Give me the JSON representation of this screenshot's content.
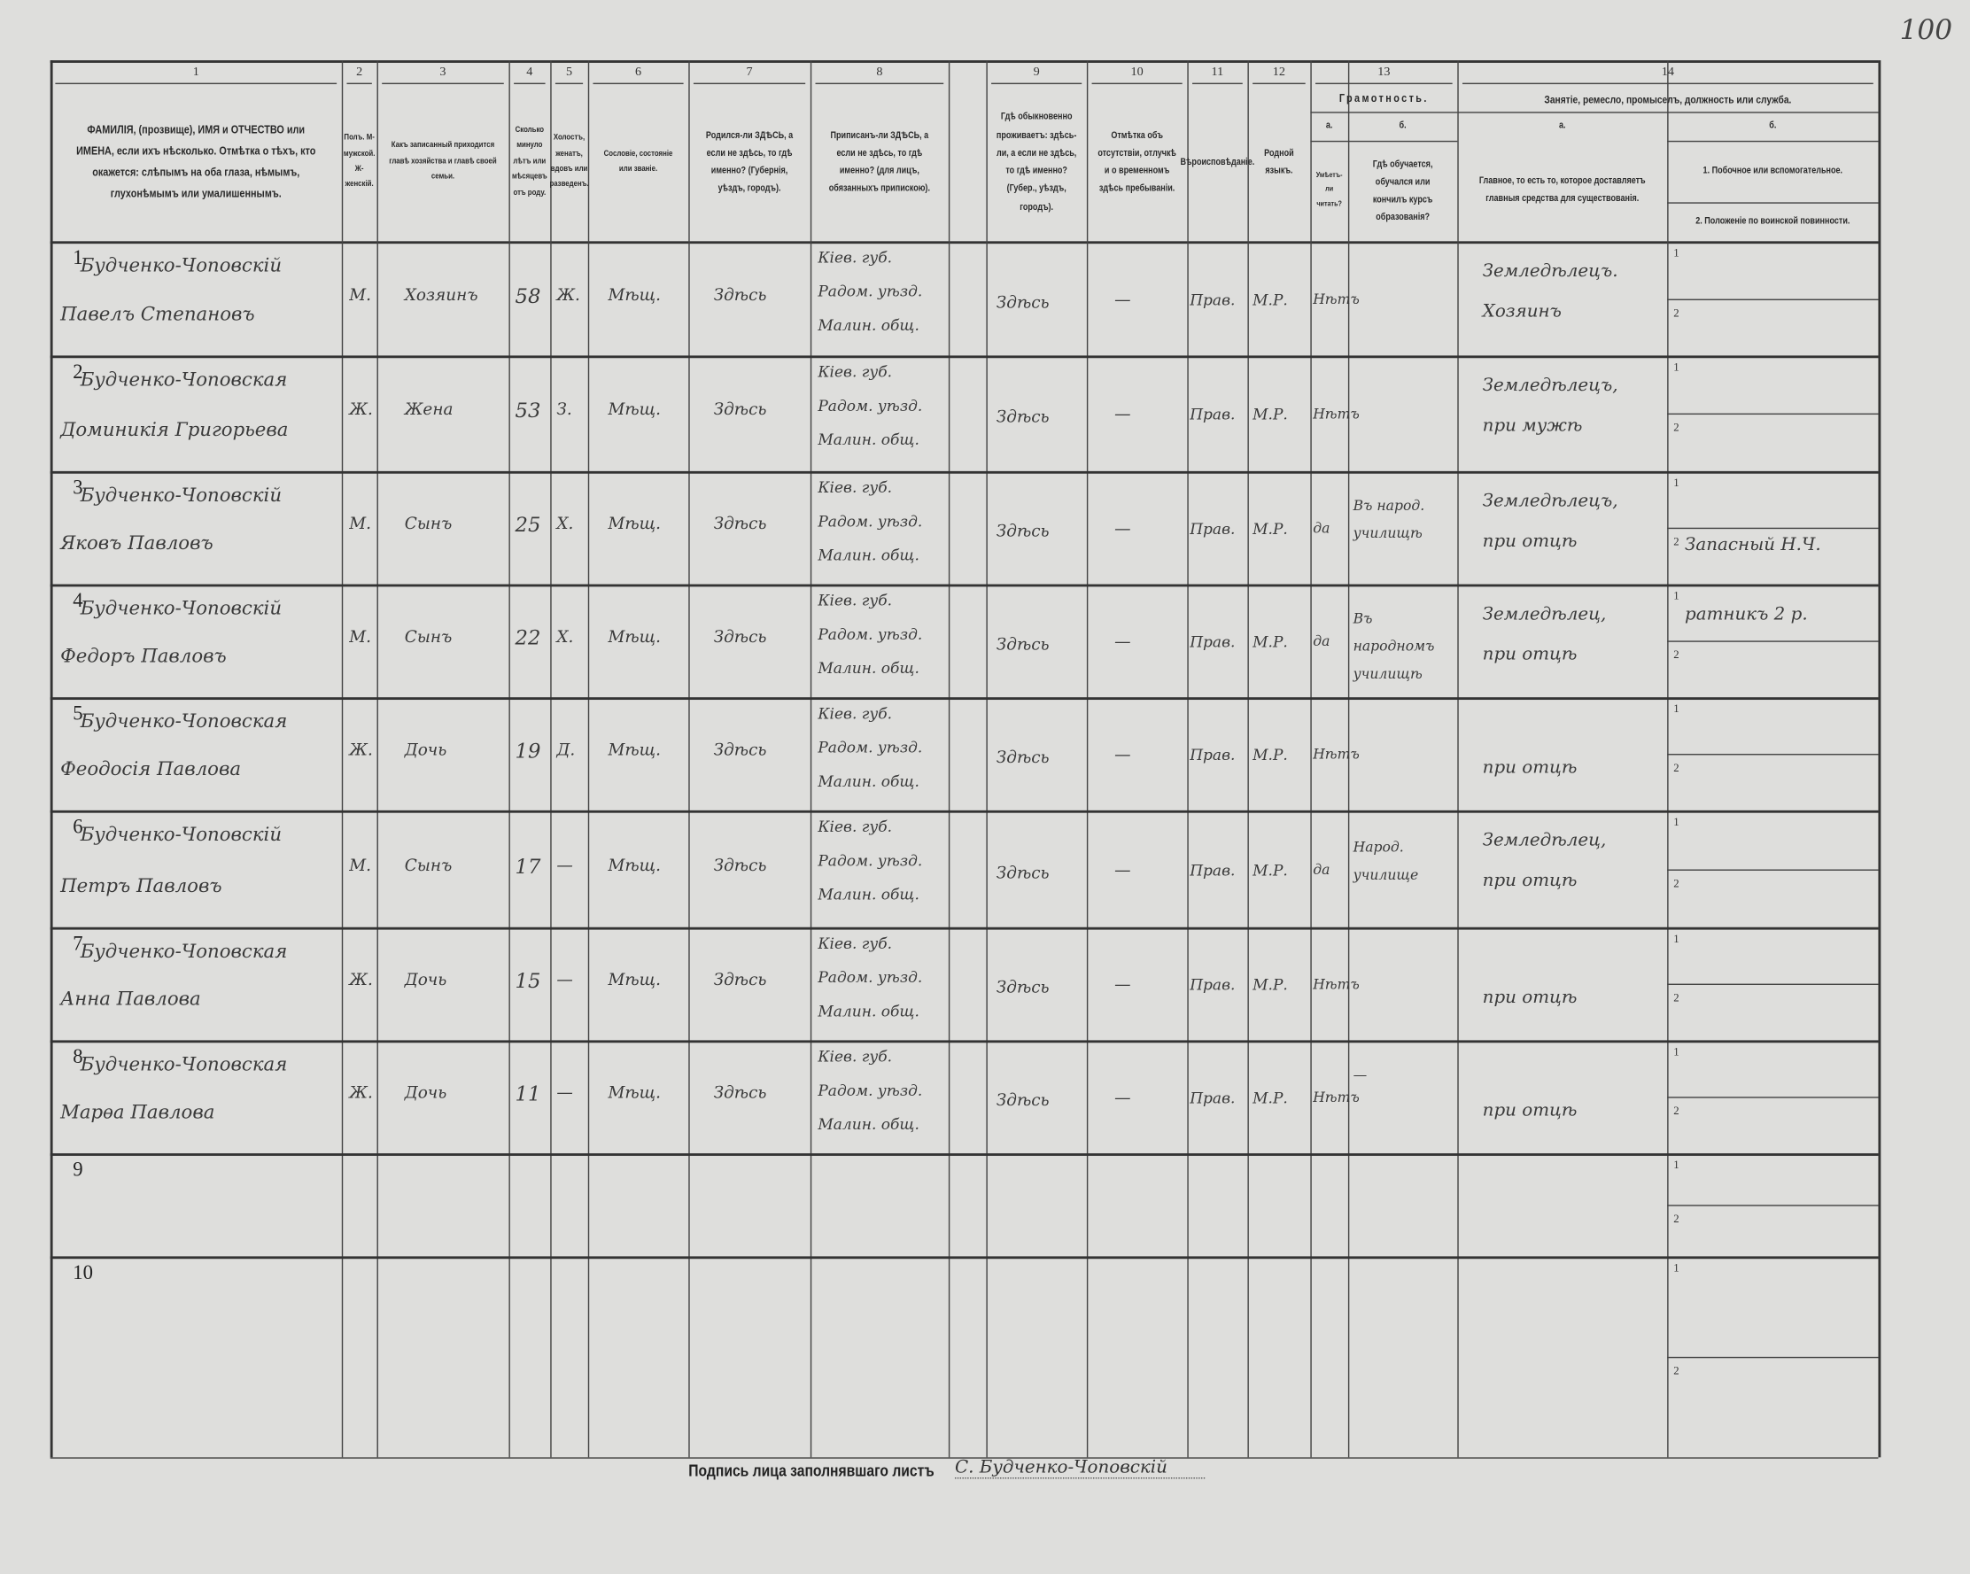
{
  "page_number": "100",
  "header": {
    "column_numbers": [
      "1",
      "2",
      "3",
      "4",
      "5",
      "6",
      "7",
      "8",
      "",
      "9",
      "10",
      "11",
      "12",
      "13",
      "14"
    ],
    "col1": "ФАМИЛІЯ, (прозвище), ИМЯ и ОТЧЕСТВО или ИМЕНА, если ихъ нѣсколько. Отмѣтка о тѣхъ, кто окажется: слѣпымъ на оба глаза, нѣмымъ, глухонѣмымъ или умалишеннымъ.",
    "col2": "Полъ. М-мужской. Ж-женскій.",
    "col3": "Какъ записанный приходится главѣ хозяйства и главѣ своей семьи.",
    "col4": "Сколько минуло лѣтъ или мѣсяцевъ отъ роду.",
    "col5": "Холостъ, женатъ, вдовъ или разведенъ.",
    "col6": "Сословіе, состояніе или званіе.",
    "col7": "Родился-ли ЗДѢСЬ, а если не здѣсь, то гдѣ именно? (Губернія, уѣздъ, городъ).",
    "col8": "Приписанъ-ли ЗДѢСЬ, а если не здѣсь, то гдѣ именно? (для лицъ, обязанныхъ припискою).",
    "col9": "Гдѣ обыкновенно проживаетъ: здѣсь-ли, а если не здѣсь, то гдѣ именно? (Губер., уѣздъ, городъ).",
    "col10": "Отмѣтка объ отсутствіи, отлучкѣ и о временномъ здѣсь пребываніи.",
    "col11": "Вѣроисповѣданіе.",
    "col12": "Родной языкъ.",
    "col13_title": "Грамотность.",
    "col13a_label": "а.",
    "col13b_label": "б.",
    "col13a": "Умѣетъ-ли читать?",
    "col13b": "Гдѣ обучается, обучался или кончилъ курсъ образованія?",
    "col14_title": "Занятіе, ремесло, промыселъ, должность или служба.",
    "col14a_label": "а.",
    "col14b_label": "б.",
    "col14a": "Главное, то есть то, которое доставляетъ главныя средства для существованія.",
    "col14b1": "1. Побочное или вспомогательное.",
    "col14b2": "2. Положеніе по воинской повинности."
  },
  "rows": [
    {
      "n": "1",
      "surname": "Будченко-Чоповскій",
      "name": "Павелъ Степановъ",
      "sex": "М.",
      "relation": "Хозяинъ",
      "age": "58",
      "marital": "Ж.",
      "estate": "Мѣщ.",
      "born": "Здѣсь",
      "registered": [
        "Кіев. губ.",
        "Радом. уѣзд.",
        "Малин. общ."
      ],
      "resides": "Здѣсь",
      "absence": "—",
      "religion": "Прав.",
      "language": "М.Р.",
      "literate": "Нѣтъ",
      "school": "",
      "occupation": [
        "Земледѣлецъ.",
        "Хозяинъ"
      ],
      "side1": "",
      "side2": ""
    },
    {
      "n": "2",
      "surname": "Будченко-Чоповская",
      "name": "Доминикія Григорьева",
      "sex": "Ж.",
      "relation": "Жена",
      "age": "53",
      "marital": "З.",
      "estate": "Мѣщ.",
      "born": "Здѣсь",
      "registered": [
        "Кіев. губ.",
        "Радом. уѣзд.",
        "Малин. общ."
      ],
      "resides": "Здѣсь",
      "absence": "—",
      "religion": "Прав.",
      "language": "М.Р.",
      "literate": "Нѣтъ",
      "school": "",
      "occupation": [
        "Земледѣлецъ,",
        "при мужѣ"
      ],
      "side1": "",
      "side2": ""
    },
    {
      "n": "3",
      "surname": "Будченко-Чоповскій",
      "name": "Яковъ Павловъ",
      "sex": "М.",
      "relation": "Сынъ",
      "age": "25",
      "marital": "Х.",
      "estate": "Мѣщ.",
      "born": "Здѣсь",
      "registered": [
        "Кіев. губ.",
        "Радом. уѣзд.",
        "Малин. общ."
      ],
      "resides": "Здѣсь",
      "absence": "—",
      "religion": "Прав.",
      "language": "М.Р.",
      "literate": "да",
      "school": "Въ народ. училищѣ",
      "occupation": [
        "Земледѣлецъ,",
        "при отцѣ"
      ],
      "side1": "",
      "side2": "Запасный Н.Ч."
    },
    {
      "n": "4",
      "surname": "Будченко-Чоповскій",
      "name": "Федоръ Павловъ",
      "sex": "М.",
      "relation": "Сынъ",
      "age": "22",
      "marital": "Х.",
      "estate": "Мѣщ.",
      "born": "Здѣсь",
      "registered": [
        "Кіев. губ.",
        "Радом. уѣзд.",
        "Малин. общ."
      ],
      "resides": "Здѣсь",
      "absence": "—",
      "religion": "Прав.",
      "language": "М.Р.",
      "literate": "да",
      "school": "Въ народномъ училищѣ",
      "occupation": [
        "Земледѣлец,",
        "при отцѣ"
      ],
      "side1": "ратникъ 2 р.",
      "side2": ""
    },
    {
      "n": "5",
      "surname": "Будченко-Чоповская",
      "name": "Феодосія Павлова",
      "sex": "Ж.",
      "relation": "Дочь",
      "age": "19",
      "marital": "Д.",
      "estate": "Мѣщ.",
      "born": "Здѣсь",
      "registered": [
        "Кіев. губ.",
        "Радом. уѣзд.",
        "Малин. общ."
      ],
      "resides": "Здѣсь",
      "absence": "—",
      "religion": "Прав.",
      "language": "М.Р.",
      "literate": "Нѣтъ",
      "school": "",
      "occupation": [
        "",
        "при отцѣ"
      ],
      "side1": "",
      "side2": ""
    },
    {
      "n": "6",
      "surname": "Будченко-Чоповскій",
      "name": "Петръ Павловъ",
      "sex": "М.",
      "relation": "Сынъ",
      "age": "17",
      "marital": "—",
      "estate": "Мѣщ.",
      "born": "Здѣсь",
      "registered": [
        "Кіев. губ.",
        "Радом. уѣзд.",
        "Малин. общ."
      ],
      "resides": "Здѣсь",
      "absence": "—",
      "religion": "Прав.",
      "language": "М.Р.",
      "literate": "да",
      "school": "Народ. училище",
      "occupation": [
        "Земледѣлец,",
        "при отцѣ"
      ],
      "side1": "",
      "side2": ""
    },
    {
      "n": "7",
      "surname": "Будченко-Чоповская",
      "name": "Анна Павлова",
      "sex": "Ж.",
      "relation": "Дочь",
      "age": "15",
      "marital": "—",
      "estate": "Мѣщ.",
      "born": "Здѣсь",
      "registered": [
        "Кіев. губ.",
        "Радом. уѣзд.",
        "Малин. общ."
      ],
      "resides": "Здѣсь",
      "absence": "—",
      "religion": "Прав.",
      "language": "М.Р.",
      "literate": "Нѣтъ",
      "school": "",
      "occupation": [
        "",
        "при отцѣ"
      ],
      "side1": "",
      "side2": ""
    },
    {
      "n": "8",
      "surname": "Будченко-Чоповская",
      "name": "Марѳа Павлова",
      "sex": "Ж.",
      "relation": "Дочь",
      "age": "11",
      "marital": "—",
      "estate": "Мѣщ.",
      "born": "Здѣсь",
      "registered": [
        "Кіев. губ.",
        "Радом. уѣзд.",
        "Малин. общ."
      ],
      "resides": "Здѣсь",
      "absence": "—",
      "religion": "Прав.",
      "language": "М.Р.",
      "literate": "Нѣтъ",
      "school": "—",
      "occupation": [
        "",
        "при отцѣ"
      ],
      "side1": "",
      "side2": ""
    },
    {
      "n": "9"
    },
    {
      "n": "10"
    }
  ],
  "sub_labels": [
    "1",
    "2"
  ],
  "signature": {
    "label": "Подпись лица заполнявшаго листъ",
    "value": "С. Будченко-Чоповскій"
  }
}
